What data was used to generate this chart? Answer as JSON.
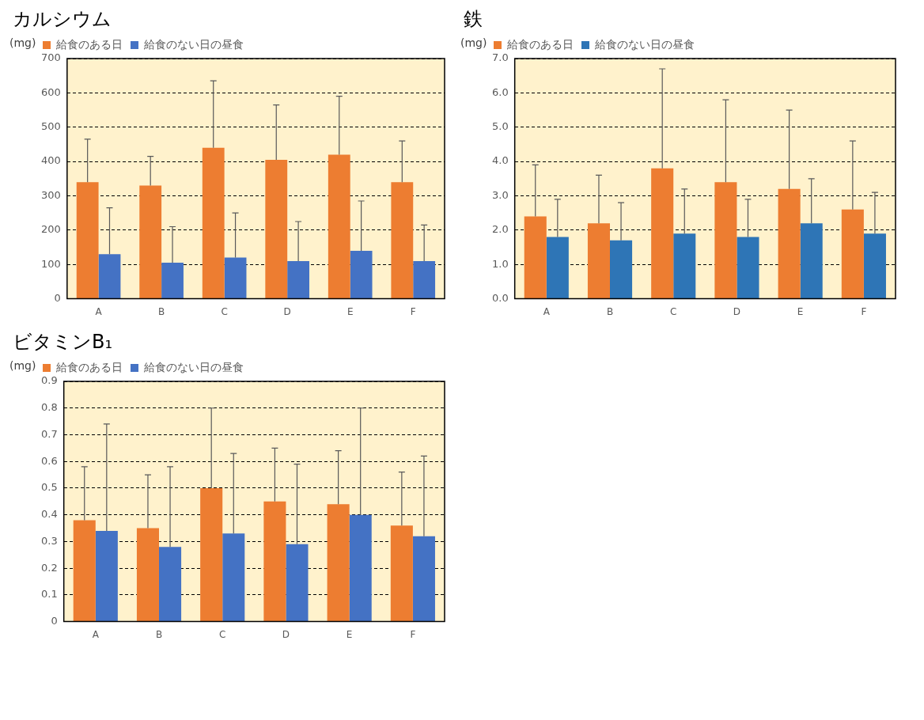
{
  "chart_data": [
    {
      "type": "bar",
      "title": "カルシウム",
      "ylabel": "(mg)",
      "categories": [
        "A",
        "B",
        "C",
        "D",
        "E",
        "F"
      ],
      "legend": "top left",
      "grid": "y",
      "ylim": [
        0,
        700
      ],
      "yticks": [
        0,
        100,
        200,
        300,
        400,
        500,
        600,
        700
      ],
      "series": [
        {
          "name": "給食のある日",
          "color": "#ed7d31",
          "values": [
            340,
            330,
            440,
            405,
            420,
            340
          ],
          "errors": [
            [
              340,
              465
            ],
            [
              330,
              415
            ],
            [
              440,
              635
            ],
            [
              405,
              565
            ],
            [
              420,
              590
            ],
            [
              340,
              460
            ]
          ]
        },
        {
          "name": "給食のない日の昼食",
          "color": "#4472c4",
          "values": [
            130,
            105,
            120,
            110,
            140,
            110
          ],
          "errors": [
            [
              130,
              265
            ],
            [
              105,
              210
            ],
            [
              120,
              250
            ],
            [
              110,
              225
            ],
            [
              140,
              285
            ],
            [
              110,
              215
            ]
          ]
        }
      ]
    },
    {
      "type": "bar",
      "title": "鉄",
      "ylabel": "(mg)",
      "categories": [
        "A",
        "B",
        "C",
        "D",
        "E",
        "F"
      ],
      "legend": "top left",
      "grid": "y",
      "ylim": [
        0,
        7
      ],
      "yticks": [
        {
          "value": 0,
          "label": "0.0"
        },
        {
          "value": 1,
          "label": "1.0"
        },
        {
          "value": 2,
          "label": "2.0"
        },
        {
          "value": 3,
          "label": "3.0"
        },
        {
          "value": 4,
          "label": "4.0"
        },
        {
          "value": 5,
          "label": "5.0"
        },
        {
          "value": 6,
          "label": "6.0"
        },
        {
          "value": 7,
          "label": "7.0"
        }
      ],
      "series": [
        {
          "name": "給食のある日",
          "color": "#ed7d31",
          "values": [
            2.4,
            2.2,
            3.8,
            3.4,
            3.2,
            2.6
          ],
          "errors": [
            [
              2.4,
              3.9
            ],
            [
              2.2,
              3.6
            ],
            [
              3.8,
              6.7
            ],
            [
              3.4,
              5.8
            ],
            [
              3.2,
              5.5
            ],
            [
              2.6,
              4.6
            ]
          ]
        },
        {
          "name": "給食のない日の昼食",
          "color": "#2e75b6",
          "values": [
            1.8,
            1.7,
            1.9,
            1.8,
            2.2,
            1.9
          ],
          "errors": [
            [
              1.8,
              2.9
            ],
            [
              1.7,
              2.8
            ],
            [
              1.9,
              3.2
            ],
            [
              1.8,
              2.9
            ],
            [
              2.2,
              3.5
            ],
            [
              1.9,
              3.1
            ]
          ]
        }
      ]
    },
    {
      "type": "bar",
      "title": "ビタミンB₁",
      "ylabel": "(mg)",
      "categories": [
        "A",
        "B",
        "C",
        "D",
        "E",
        "F"
      ],
      "legend": "top left",
      "grid": "y",
      "ylim": [
        0,
        0.9
      ],
      "yticks": [
        0,
        0.1,
        0.2,
        0.3,
        0.4,
        0.5,
        0.6,
        0.7,
        0.8,
        0.9
      ],
      "series": [
        {
          "name": "給食のある日",
          "color": "#ed7d31",
          "values": [
            0.38,
            0.35,
            0.5,
            0.45,
            0.44,
            0.36
          ],
          "errors": [
            [
              0.38,
              0.58
            ],
            [
              0.35,
              0.55
            ],
            [
              0.5,
              0.8
            ],
            [
              0.45,
              0.65
            ],
            [
              0.44,
              0.64
            ],
            [
              0.36,
              0.56
            ]
          ]
        },
        {
          "name": "給食のない日の昼食",
          "color": "#4472c4",
          "values": [
            0.34,
            0.28,
            0.33,
            0.29,
            0.4,
            0.32
          ],
          "errors": [
            [
              0.34,
              0.74
            ],
            [
              0.28,
              0.58
            ],
            [
              0.33,
              0.63
            ],
            [
              0.29,
              0.59
            ],
            [
              0.4,
              0.8
            ],
            [
              0.32,
              0.62
            ]
          ]
        }
      ]
    }
  ]
}
